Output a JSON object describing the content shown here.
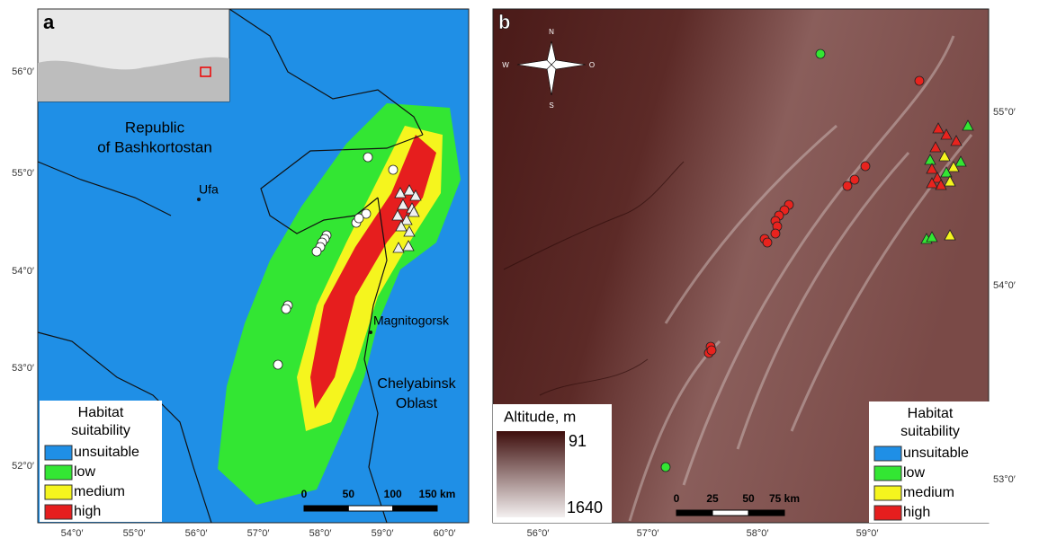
{
  "panel_a": {
    "label": "a",
    "region_1": [
      "Republic",
      "of Bashkortostan"
    ],
    "city_1": "Ufa",
    "city_2": "Magnitogorsk",
    "region_2": [
      "Chelyabinsk",
      "Oblast"
    ],
    "legend_title": [
      "Habitat",
      "suitability"
    ],
    "legend_items": [
      {
        "label": "unsuitable",
        "color": "#1f8fe6"
      },
      {
        "label": "low",
        "color": "#33e633"
      },
      {
        "label": "medium",
        "color": "#f5f51e"
      },
      {
        "label": "high",
        "color": "#e61e1e"
      }
    ],
    "scale": [
      "0",
      "50",
      "100",
      "150 km"
    ],
    "lat_labels": [
      "56°0′",
      "55°0′",
      "54°0′",
      "53°0′",
      "52°0′"
    ],
    "lon_labels": [
      "54°0′",
      "55°0′",
      "56°0′",
      "57°0′",
      "58°0′",
      "59°0′",
      "60°0′"
    ]
  },
  "panel_b": {
    "label": "b",
    "compass": [
      "N",
      "W",
      "O",
      "S"
    ],
    "altitude_title": "Altitude, m",
    "altitude_range": [
      91,
      1640
    ],
    "legend_title": [
      "Habitat",
      "suitability"
    ],
    "legend_items": [
      {
        "label": "unsuitable",
        "color": "#1f8fe6"
      },
      {
        "label": "low",
        "color": "#33e633"
      },
      {
        "label": "medium",
        "color": "#f5f51e"
      },
      {
        "label": "high",
        "color": "#e61e1e"
      }
    ],
    "scale": [
      "0",
      "25",
      "50",
      "75 km"
    ],
    "lat_labels": [
      "55°0′",
      "54°0′",
      "53°0′"
    ],
    "lon_labels": [
      "56°0′",
      "57°0′",
      "58°0′",
      "59°0′"
    ]
  }
}
